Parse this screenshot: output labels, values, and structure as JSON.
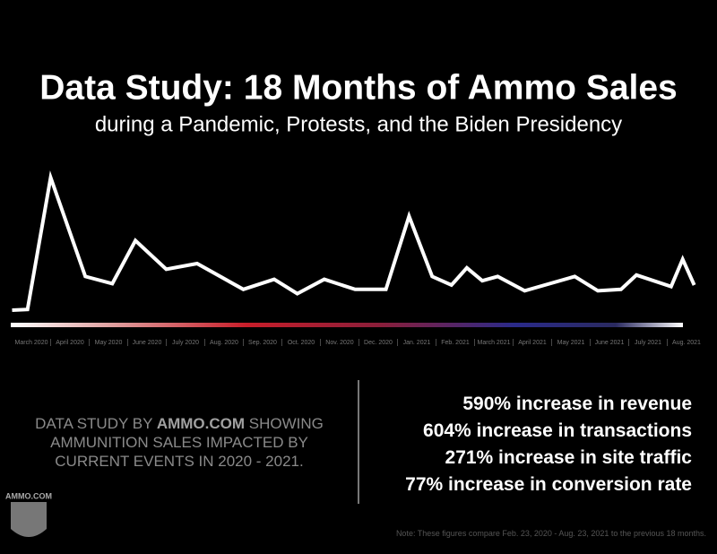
{
  "chart_data": {
    "type": "line",
    "title": "Data Study: 18 Months of Ammo Sales",
    "subtitle": "during a Pandemic, Protests, and the Biden Presidency",
    "color": "#ffffff",
    "x": [
      -0.5,
      -0.1,
      0.5,
      1.4,
      2.1,
      2.7,
      3.5,
      4.3,
      5.5,
      6.3,
      6.9,
      7.6,
      8.4,
      9.2,
      9.8,
      10.4,
      10.9,
      11.3,
      11.7,
      12.1,
      12.8,
      14.1,
      14.7,
      15.3,
      15.7,
      16.6,
      16.9,
      17.2
    ],
    "values": [
      2.5,
      3,
      95,
      26,
      21,
      51,
      31,
      35,
      17,
      24,
      14,
      24,
      17,
      17,
      68,
      26,
      20,
      32,
      23,
      26,
      16,
      26,
      16,
      17,
      27,
      19,
      38,
      20
    ],
    "xlim": [
      -0.5,
      17.5
    ],
    "ylim": [
      0,
      100
    ],
    "xticks": [
      {
        "value": 0,
        "label": "March 2020"
      },
      {
        "value": 1,
        "label": "April 2020"
      },
      {
        "value": 2,
        "label": "May 2020"
      },
      {
        "value": 3,
        "label": "June 2020"
      },
      {
        "value": 4,
        "label": "July 2020"
      },
      {
        "value": 5,
        "label": "Aug. 2020"
      },
      {
        "value": 6,
        "label": "Sep. 2020"
      },
      {
        "value": 7,
        "label": "Oct. 2020"
      },
      {
        "value": 8,
        "label": "Nov. 2020"
      },
      {
        "value": 9,
        "label": "Dec. 2020"
      },
      {
        "value": 10,
        "label": "Jan. 2021"
      },
      {
        "value": 11,
        "label": "Feb. 2021"
      },
      {
        "value": 12,
        "label": "March 2021"
      },
      {
        "value": 13,
        "label": "April 2021"
      },
      {
        "value": 14,
        "label": "May 2021"
      },
      {
        "value": 15,
        "label": "June 2021"
      },
      {
        "value": 16,
        "label": "July 2021"
      },
      {
        "value": 17,
        "label": "Aug. 2021"
      }
    ]
  },
  "study_text": {
    "before": "DATA STUDY BY ",
    "brand": "AMMO.COM",
    "after": " SHOWING AMMUNITION SALES IMPACTED BY CURRENT EVENTS IN 2020 - 2021."
  },
  "stats": [
    "590% increase in revenue",
    "604% increase in transactions",
    "271% increase in site traffic",
    "77% increase in conversion rate"
  ],
  "note": "Note: These figures compare Feb. 23, 2020 - Aug. 23, 2021 to the previous 18 months.",
  "logo": "AMMO.COM"
}
